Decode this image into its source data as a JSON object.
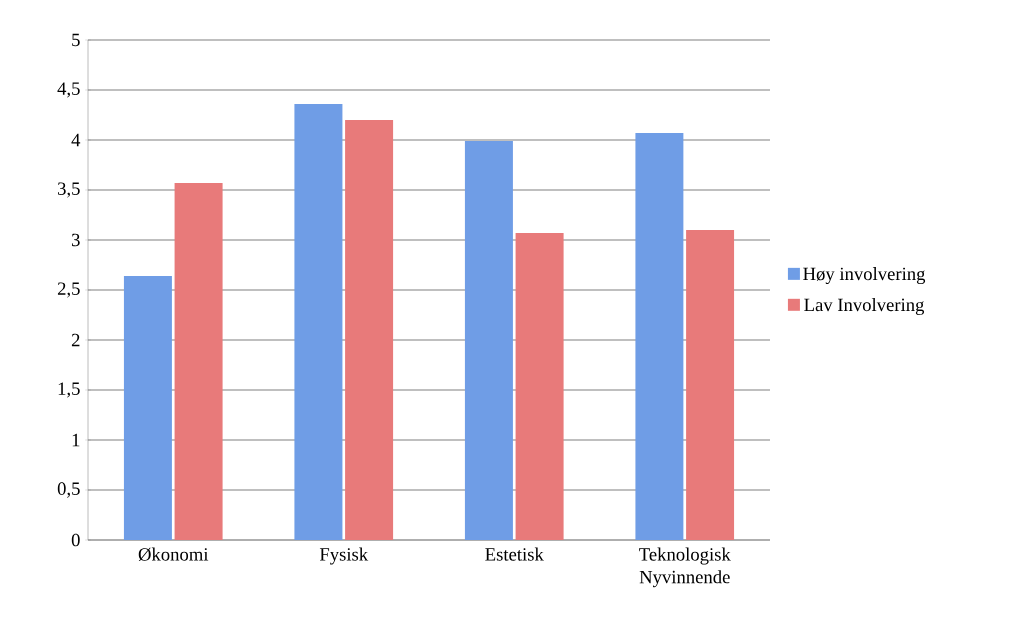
{
  "chart_data": {
    "type": "bar",
    "categories": [
      "Økonomi",
      "Fysisk",
      "Estetisk",
      "Teknologisk Nyvinnende"
    ],
    "series": [
      {
        "name": "Høy involvering",
        "color": "#6f9de6",
        "values": [
          2.64,
          4.36,
          3.99,
          4.07
        ]
      },
      {
        "name": "Lav Involvering",
        "color": "#e87a7a",
        "values": [
          3.57,
          4.2,
          3.07,
          3.1
        ]
      }
    ],
    "ylim": [
      0,
      5
    ],
    "yticks": [
      0,
      {
        "value": 0.5,
        "label": "0,5"
      },
      1,
      {
        "value": 1.5,
        "label": "1,5"
      },
      2,
      {
        "value": 2.5,
        "label": "2,5"
      },
      3,
      {
        "value": 3.5,
        "label": "3,5"
      },
      4,
      {
        "value": 4.5,
        "label": "4,5"
      },
      5
    ],
    "grid": "y",
    "legend": "right"
  }
}
